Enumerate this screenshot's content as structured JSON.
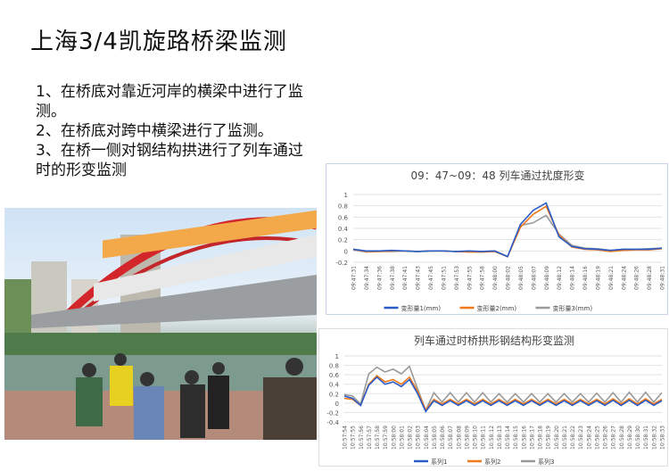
{
  "slide": {
    "title": "上海3/4凯旋路桥梁监测",
    "bullets": [
      "1、在桥底对靠近河岸的横梁中进行了监测。",
      "2、在桥底对跨中横梁进行了监测。",
      "3、在桥一侧对钢结构拱进行了列车通过时的形变监测"
    ]
  },
  "photo": {
    "description_icon": "bridge-photo"
  },
  "chart_data": [
    {
      "type": "line",
      "title": "09：47~09：48 列车通过扰度形变",
      "ylim": [
        -0.2,
        1
      ],
      "yticks": [
        -0.2,
        0,
        0.2,
        0.4,
        0.6,
        0.8,
        1
      ],
      "grid": true,
      "legend": "bottom",
      "categories": [
        "09:47:31",
        "09:47:34",
        "09:47:36",
        "09:47:38",
        "09:47:41",
        "09:47:43",
        "09:47:45",
        "09:47:51",
        "09:47:53",
        "09:47:55",
        "09:47:58",
        "09:48:00",
        "09:48:02",
        "09:48:05",
        "09:48:07",
        "09:48:09",
        "09:48:12",
        "09:48:14",
        "09:48:16",
        "09:48:19",
        "09:48:21",
        "09:48:24",
        "09:48:26",
        "09:48:28",
        "09:48:31"
      ],
      "series": [
        {
          "name": "变形量1(mm)",
          "color": "#2a5cc8",
          "values": [
            0.03,
            0,
            0,
            0.01,
            0,
            -0.01,
            0,
            0,
            -0.01,
            0,
            -0.01,
            0,
            -0.1,
            0.47,
            0.72,
            0.85,
            0.25,
            0.08,
            0.04,
            0.03,
            0.01,
            0.03,
            0.03,
            0.03,
            0.05
          ]
        },
        {
          "name": "变形量2(mm)",
          "color": "#f07a1a",
          "values": [
            0.03,
            -0.01,
            -0.01,
            0,
            0,
            -0.01,
            0,
            0,
            -0.01,
            -0.02,
            -0.02,
            -0.01,
            -0.1,
            0.42,
            0.65,
            0.79,
            0.28,
            0.07,
            0.03,
            0.02,
            -0.01,
            0.01,
            0.02,
            0.02,
            0.04
          ]
        },
        {
          "name": "变形量3(mm)",
          "color": "#9a9a9a",
          "values": [
            0.02,
            -0.02,
            -0.01,
            -0.01,
            0,
            -0.01,
            0,
            0,
            -0.01,
            -0.01,
            -0.01,
            0,
            -0.1,
            0.45,
            0.5,
            0.63,
            0.3,
            0.1,
            0.05,
            0.04,
            0.01,
            0.03,
            0.03,
            0.04,
            0.05
          ]
        }
      ]
    },
    {
      "type": "line",
      "title": "列车通过时桥拱形钢结构形变监测",
      "ylim": [
        -0.4,
        1
      ],
      "yticks": [
        -0.4,
        -0.2,
        0,
        0.2,
        0.4,
        0.6,
        0.8,
        1
      ],
      "grid": true,
      "legend": "bottom",
      "categories": [
        "10:57:54",
        "10:57:55",
        "10:57:56",
        "10:57:57",
        "10:57:58",
        "10:57:59",
        "10:58:00",
        "10:58:01",
        "10:58:02",
        "10:58:03",
        "10:58:04",
        "10:58:05",
        "10:58:06",
        "10:58:07",
        "10:58:08",
        "10:58:09",
        "10:58:10",
        "10:58:11",
        "10:58:12",
        "10:58:13",
        "10:58:14",
        "10:58:15",
        "10:58:16",
        "10:58:17",
        "10:58:18",
        "10:58:19",
        "10:58:20",
        "10:58:21",
        "10:58:22",
        "10:58:23",
        "10:58:24",
        "10:58:25",
        "10:58:26",
        "10:58:27",
        "10:58:28",
        "10:58:29",
        "10:58:30",
        "10:58:31",
        "10:58:32",
        "10:58:33"
      ],
      "series": [
        {
          "name": "系列1",
          "color": "#2a5cc8",
          "values": [
            0.15,
            0.1,
            -0.05,
            0.38,
            0.55,
            0.4,
            0.45,
            0.35,
            0.5,
            0.2,
            -0.18,
            0.05,
            -0.05,
            0.05,
            -0.05,
            0.05,
            -0.05,
            0.05,
            -0.05,
            0.05,
            -0.05,
            0.05,
            -0.05,
            0.05,
            -0.05,
            0.05,
            -0.05,
            0.05,
            -0.05,
            0.05,
            -0.05,
            0.05,
            -0.05,
            0.06,
            -0.05,
            0.06,
            -0.05,
            0.06,
            -0.05,
            0.05
          ]
        },
        {
          "name": "系列2",
          "color": "#f07a1a",
          "values": [
            0.1,
            0.08,
            -0.05,
            0.4,
            0.58,
            0.45,
            0.5,
            0.4,
            0.55,
            0.25,
            -0.15,
            0.08,
            -0.02,
            0.08,
            -0.02,
            0.08,
            -0.02,
            0.08,
            -0.02,
            0.08,
            -0.02,
            0.08,
            -0.02,
            0.08,
            -0.02,
            0.08,
            -0.02,
            0.08,
            -0.02,
            0.08,
            -0.02,
            0.08,
            -0.02,
            0.09,
            -0.02,
            0.09,
            -0.02,
            0.09,
            -0.02,
            0.08
          ]
        },
        {
          "name": "系列3",
          "color": "#9a9a9a",
          "values": [
            0.18,
            0.15,
            -0.02,
            0.62,
            0.76,
            0.66,
            0.72,
            0.62,
            0.78,
            0.3,
            -0.15,
            0.22,
            0.02,
            0.22,
            0.02,
            0.22,
            0.02,
            0.22,
            0.02,
            0.2,
            0.02,
            0.2,
            0.02,
            0.2,
            0.02,
            0.2,
            0.02,
            0.2,
            0.02,
            0.2,
            0.02,
            0.21,
            0.02,
            0.22,
            0.02,
            0.23,
            0.02,
            0.23,
            0.02,
            0.22
          ]
        }
      ]
    }
  ]
}
